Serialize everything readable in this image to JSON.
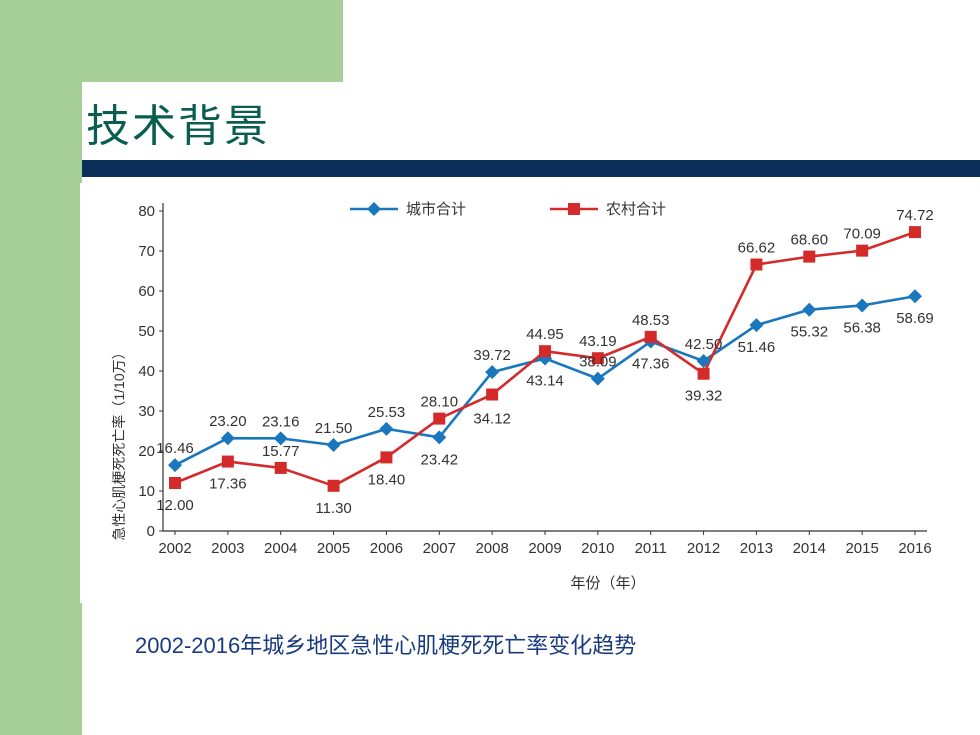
{
  "slide": {
    "title": "技术背景",
    "caption": "2002-2016年城乡地区急性心肌梗死死亡率变化趋势"
  },
  "colors": {
    "green_panel": "#a6cf98",
    "title_bar": "#0b2f5a",
    "title_text": "#0a5e50",
    "caption_text": "#1a3a80",
    "urban": "#1a77bd",
    "rural": "#d42a2a"
  },
  "chart_data": {
    "type": "line",
    "x": [
      "2002",
      "2003",
      "2004",
      "2005",
      "2006",
      "2007",
      "2008",
      "2009",
      "2010",
      "2011",
      "2012",
      "2013",
      "2014",
      "2015",
      "2016"
    ],
    "series": [
      {
        "name": "城市合计",
        "marker": "diamond",
        "values": [
          16.46,
          23.2,
          23.16,
          21.5,
          25.53,
          23.42,
          39.72,
          43.14,
          38.09,
          47.36,
          42.5,
          51.46,
          55.32,
          56.38,
          58.69
        ],
        "labels": [
          "16.46",
          "23.20",
          "23.16",
          "21.50",
          "25.53",
          "23.42",
          "39.72",
          "43.14",
          "38.09",
          "47.36",
          "42.50",
          "51.46",
          "55.32",
          "56.38",
          "58.69"
        ]
      },
      {
        "name": "农村合计",
        "marker": "square",
        "values": [
          12.0,
          17.36,
          15.77,
          11.3,
          18.4,
          28.1,
          34.12,
          44.95,
          43.19,
          48.53,
          39.32,
          66.62,
          68.6,
          70.09,
          74.72
        ],
        "labels": [
          "12.00",
          "17.36",
          "15.77",
          "11.30",
          "18.40",
          "28.10",
          "34.12",
          "44.95",
          "43.19",
          "48.53",
          "39.32",
          "66.62",
          "68.60",
          "70.09",
          "74.72"
        ]
      }
    ],
    "xlabel": "年份（年）",
    "ylabel": "急性心肌梗死死亡率（1/10万）",
    "ylim": [
      0,
      80
    ],
    "yticks": [
      "0",
      "10",
      "20",
      "30",
      "40",
      "50",
      "60",
      "70",
      "80"
    ],
    "grid": false,
    "legend": "top-center"
  }
}
